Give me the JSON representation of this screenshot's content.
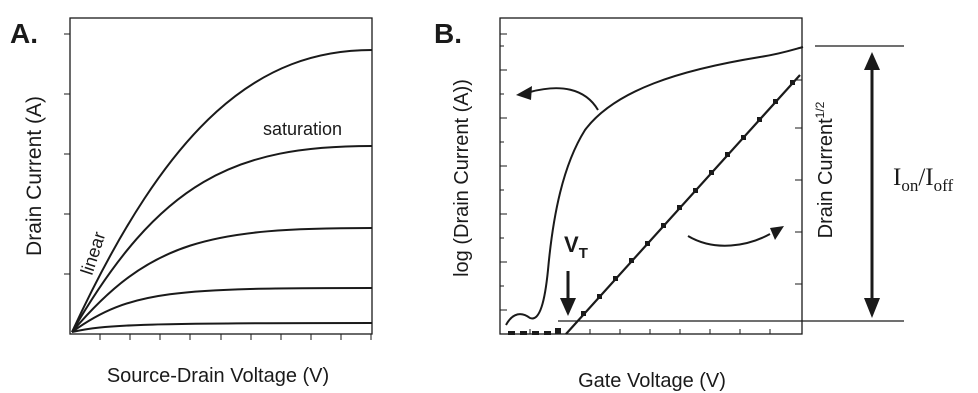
{
  "panel_a": {
    "letter": "A.",
    "x_label": "Source-Drain Voltage (V)",
    "y_label": "Drain Current (A)",
    "annotations": {
      "linear": "linear",
      "saturation": "saturation"
    }
  },
  "panel_b": {
    "letter": "B.",
    "x_label": "Gate Voltage (V)",
    "y_label_left": "log (Drain Current (A))",
    "y_label_right_main": "Drain Current",
    "y_label_right_sup": "1/2",
    "threshold": {
      "main": "V",
      "sub": "T"
    },
    "ratio": {
      "i1": "I",
      "sub1": "on",
      "slash": "/",
      "i2": "I",
      "sub2": "off"
    }
  },
  "colors": {
    "ink": "#1a1a1a",
    "background": "#ffffff"
  }
}
